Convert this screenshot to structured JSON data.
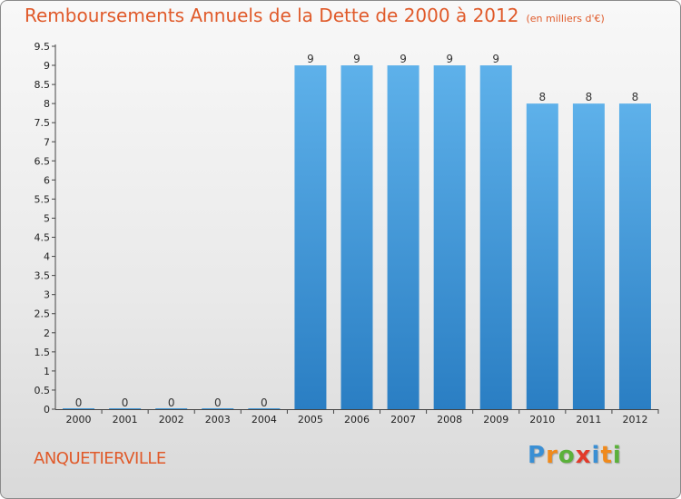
{
  "title": "Remboursements Annuels de la Dette de 2000 à 2012",
  "unit_note": "(en milliers d'€)",
  "commune": "ANQUETIERVILLE",
  "logo": {
    "text": "Proxiti",
    "letters": [
      {
        "ch": "P",
        "color": "#3a8fd4"
      },
      {
        "ch": "r",
        "color": "#f08a1c"
      },
      {
        "ch": "o",
        "color": "#5bb13a"
      },
      {
        "ch": "x",
        "color": "#e23a2a"
      },
      {
        "ch": "i",
        "color": "#3a8fd4"
      },
      {
        "ch": "t",
        "color": "#f08a1c"
      },
      {
        "ch": "i",
        "color": "#5bb13a"
      }
    ]
  },
  "colors": {
    "title": "#e05a2a",
    "bar_top": "#5eb1ea",
    "bar_bottom": "#2a7ec3"
  },
  "chart_data": {
    "type": "bar",
    "title": "Remboursements Annuels de la Dette de 2000 à 2012",
    "subtitle": "(en milliers d'€)",
    "categories": [
      "2000",
      "2001",
      "2002",
      "2003",
      "2004",
      "2005",
      "2006",
      "2007",
      "2008",
      "2009",
      "2010",
      "2011",
      "2012"
    ],
    "values": [
      0,
      0,
      0,
      0,
      0,
      9,
      9,
      9,
      9,
      9,
      8,
      8,
      8
    ],
    "value_labels": [
      "0",
      "0",
      "0",
      "0",
      "0",
      "9",
      "9",
      "9",
      "9",
      "9",
      "8",
      "8",
      "8"
    ],
    "ylim": [
      0,
      9.5
    ],
    "yticks": [
      "0",
      "0.5",
      "1",
      "1.5",
      "2",
      "2.5",
      "3",
      "3.5",
      "4",
      "4.5",
      "5",
      "5.5",
      "6",
      "6.5",
      "7",
      "7.5",
      "8",
      "8.5",
      "9",
      "9.5"
    ],
    "xlabel": "",
    "ylabel": "",
    "grid": false,
    "legend": false
  }
}
